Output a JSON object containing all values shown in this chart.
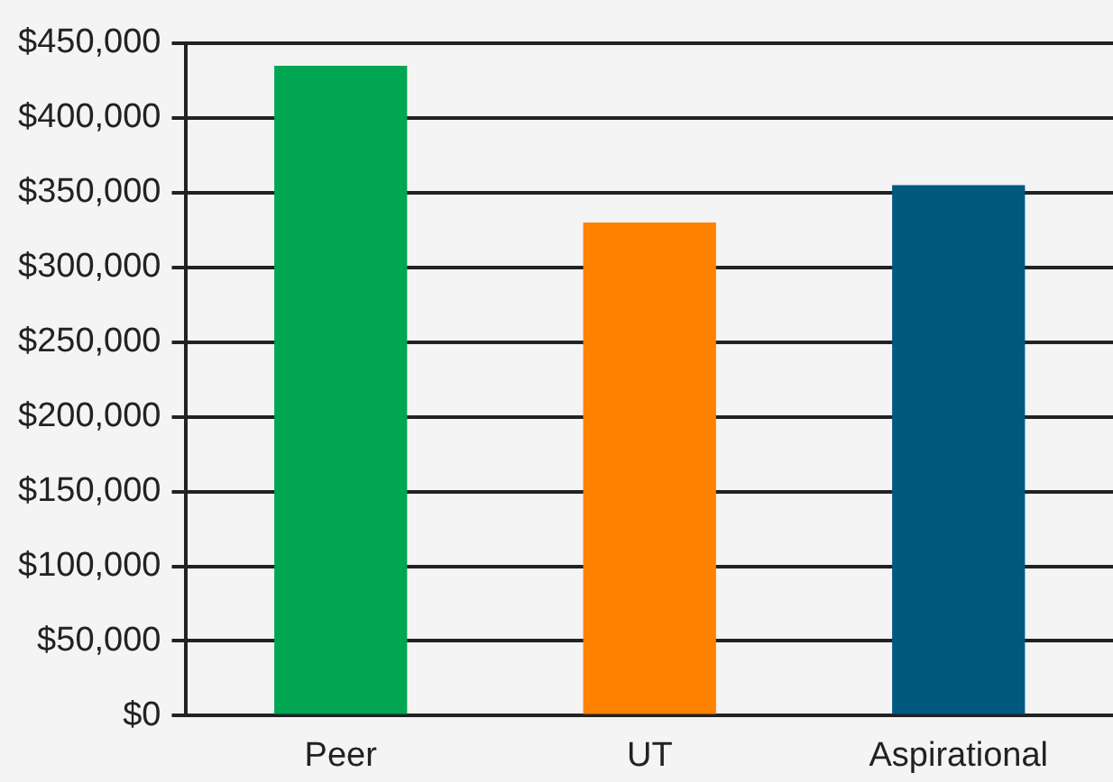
{
  "chart_data": {
    "type": "bar",
    "categories": [
      "Peer",
      "UT",
      "Aspirational"
    ],
    "values": [
      435000,
      330000,
      355000
    ],
    "colors": [
      "#00a651",
      "#ff8200",
      "#005a80"
    ],
    "ylim": [
      0,
      450000
    ],
    "yticks": [
      {
        "value": 0,
        "label": "$0"
      },
      {
        "value": 50000,
        "label": "$50,000"
      },
      {
        "value": 100000,
        "label": "$100,000"
      },
      {
        "value": 150000,
        "label": "$150,000"
      },
      {
        "value": 200000,
        "label": "$200,000"
      },
      {
        "value": 250000,
        "label": "$250,000"
      },
      {
        "value": 300000,
        "label": "$300,000"
      },
      {
        "value": 350000,
        "label": "$350,000"
      },
      {
        "value": 400000,
        "label": "$400,000"
      },
      {
        "value": 450000,
        "label": "$450,000"
      }
    ],
    "grid": "y",
    "legend": false
  }
}
